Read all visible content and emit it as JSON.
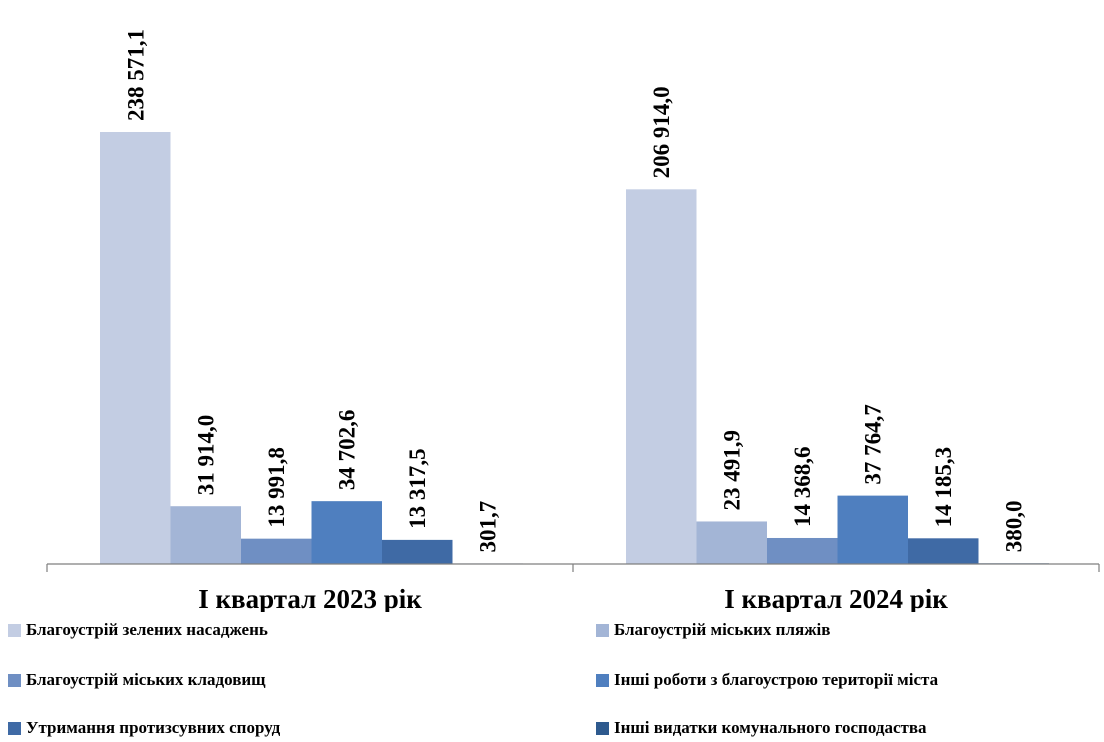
{
  "chart_data": {
    "type": "bar",
    "categories": [
      "І квартал 2023 рік",
      "І квартал 2024 рік"
    ],
    "series": [
      {
        "name": "Благоустрій зелених насаджень",
        "values": [
          238571.1,
          206914.0
        ],
        "labels": [
          "238 571,1",
          "206 914,0"
        ],
        "color": "#c3cde3"
      },
      {
        "name": "Благоустрій міських пляжів",
        "values": [
          31914.0,
          23491.9
        ],
        "labels": [
          "31 914,0",
          "23 491,9"
        ],
        "color": "#a3b5d6"
      },
      {
        "name": "Благоустрій міських кладовищ",
        "values": [
          13991.8,
          14368.6
        ],
        "labels": [
          "13 991,8",
          "14 368,6"
        ],
        "color": "#6f8fc3"
      },
      {
        "name": "Інші роботи з благоустрою території міста",
        "values": [
          34702.6,
          37764.7
        ],
        "labels": [
          "34 702,6",
          "37 764,7"
        ],
        "color": "#4f7fbf"
      },
      {
        "name": "Утримання протизсувних споруд",
        "values": [
          13317.5,
          14185.3
        ],
        "labels": [
          "13 317,5",
          "14 185,3"
        ],
        "color": "#3f6aa5"
      },
      {
        "name": "Інші видатки комунального господаства",
        "values": [
          301.7,
          380.0
        ],
        "labels": [
          "301,7",
          "380,0"
        ],
        "color": "#2e5a8e"
      }
    ],
    "ylim": [
      0,
      238571.1
    ],
    "grid": false,
    "legend_position": "bottom"
  }
}
